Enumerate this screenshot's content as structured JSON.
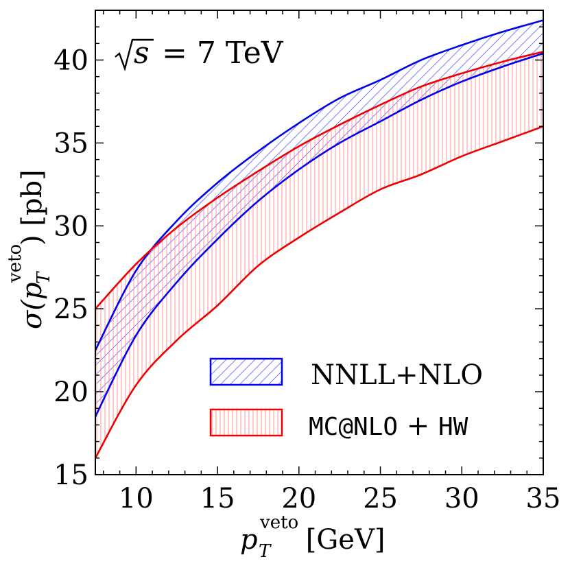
{
  "chart_data": {
    "type": "area",
    "annotation": {
      "sqrt": "√",
      "var": "s",
      "rest": " = 7 TeV"
    },
    "xlabel": {
      "main": "p",
      "sub": "T",
      "sup": "veto",
      "unit": " [GeV]"
    },
    "ylabel": {
      "main": "σ(p",
      "sub": "T",
      "sup": "veto",
      "rest": ") [pb]"
    },
    "xlim": [
      7.5,
      35
    ],
    "ylim": [
      15,
      43
    ],
    "xticks": [
      10,
      15,
      20,
      25,
      30,
      35
    ],
    "yticks": [
      15,
      20,
      25,
      30,
      35,
      40
    ],
    "legend_position": "lower-right",
    "series": [
      {
        "name": "NNLL+NLO",
        "color": "#0000ee",
        "hatch": "diagonal",
        "x": [
          7.5,
          10,
          12.5,
          15,
          17.5,
          20,
          22.5,
          25,
          27.5,
          30,
          32.5,
          35
        ],
        "upper": [
          22.5,
          27.3,
          30.3,
          32.6,
          34.5,
          36.2,
          37.7,
          38.8,
          40.0,
          40.9,
          41.7,
          42.4
        ],
        "lower": [
          18.5,
          23.4,
          26.6,
          29.2,
          31.5,
          33.4,
          35.0,
          36.3,
          37.6,
          38.7,
          39.6,
          40.4
        ]
      },
      {
        "name": "MC@NLO + HW",
        "label_parts": {
          "mono1": "MC@NLO",
          "plus": " + ",
          "mono2": "HW"
        },
        "color": "#ee0000",
        "hatch": "vertical",
        "x": [
          7.5,
          10,
          12.5,
          15,
          17.5,
          20,
          22.5,
          25,
          27.5,
          30,
          32.5,
          35
        ],
        "upper": [
          25.0,
          27.7,
          29.9,
          31.7,
          33.3,
          34.8,
          36.1,
          37.3,
          38.4,
          39.2,
          39.9,
          40.5
        ],
        "lower": [
          16.0,
          20.4,
          23.1,
          25.2,
          27.6,
          29.3,
          30.8,
          32.2,
          33.1,
          34.2,
          35.1,
          36.0
        ]
      }
    ]
  }
}
